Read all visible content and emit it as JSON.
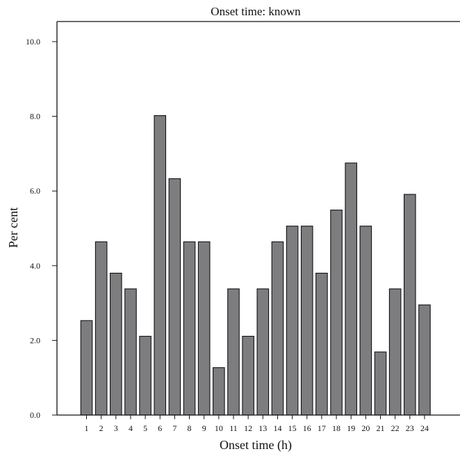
{
  "chart_data": {
    "type": "bar",
    "title": "Onset time: known",
    "xlabel": "Onset time (h)",
    "ylabel": "Per cent",
    "categories": [
      "1",
      "2",
      "3",
      "4",
      "5",
      "6",
      "7",
      "8",
      "9",
      "10",
      "11",
      "12",
      "13",
      "14",
      "15",
      "16",
      "17",
      "18",
      "19",
      "20",
      "21",
      "22",
      "23",
      "24"
    ],
    "values": [
      2.53,
      4.64,
      3.8,
      3.38,
      2.11,
      8.02,
      6.33,
      4.64,
      4.64,
      1.27,
      3.38,
      2.11,
      3.38,
      4.64,
      5.06,
      5.06,
      3.8,
      5.49,
      6.75,
      5.06,
      1.69,
      3.38,
      5.91,
      2.95
    ],
    "ylim": [
      0,
      10.0
    ],
    "yticks": [
      "0.0",
      "2.0",
      "4.0",
      "6.0",
      "8.0",
      "10.0"
    ],
    "grid": false,
    "legend": "none",
    "bar_color": "#7d7d7f",
    "edge_color": "#111111"
  }
}
